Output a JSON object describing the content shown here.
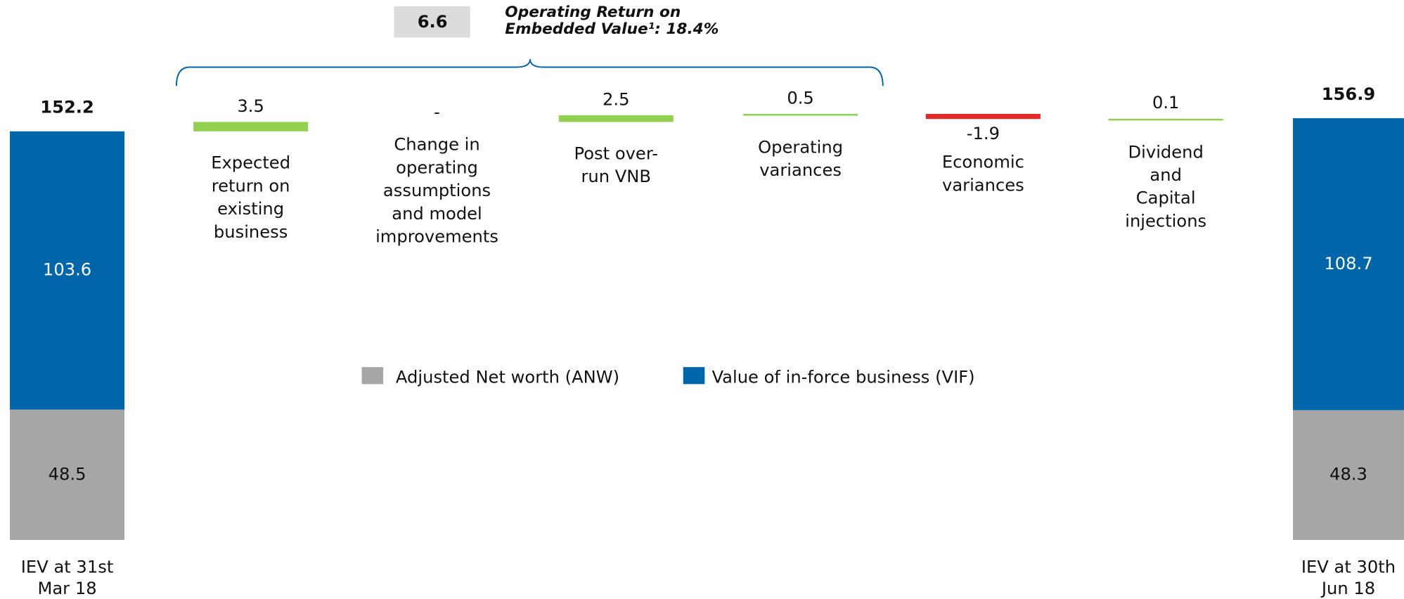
{
  "chart_data": {
    "type": "waterfall",
    "start": {
      "label": [
        "IEV at 31st",
        "Mar 18"
      ],
      "total": 152.2,
      "values": [
        48.5,
        103.6
      ]
    },
    "steps": {
      "categories": [
        [
          "Expected",
          "return on",
          "existing",
          "business"
        ],
        [
          "Change in",
          "operating",
          "assumptions",
          "and model",
          "improvements"
        ],
        [
          "Post over-",
          "run VNB"
        ],
        [
          "Operating",
          "variances"
        ],
        [
          "Economic",
          "variances"
        ],
        [
          "Dividend",
          "and",
          "Capital",
          "injections"
        ]
      ],
      "values": [
        3.5,
        null,
        2.5,
        0.5,
        -1.9,
        0.1
      ],
      "value_labels": [
        "3.5",
        "-",
        "2.5",
        "0.5",
        "-1.9",
        "0.1"
      ]
    },
    "end": {
      "label": [
        "IEV at 30th",
        "Jun 18"
      ],
      "total": 156.9,
      "values": [
        48.3,
        108.7
      ]
    },
    "series": [
      {
        "name": "Adjusted Net worth (ANW)",
        "color": "#a6a6a6"
      },
      {
        "name": "Value of in-force business (VIF)",
        "color": "#0066aa"
      }
    ],
    "increase_color": "#92d050",
    "decrease_color": "#e32a2a",
    "bracket": {
      "value": 6.6,
      "label": [
        "Operating Return on",
        "Embedded Value¹: 18.4%"
      ]
    }
  }
}
